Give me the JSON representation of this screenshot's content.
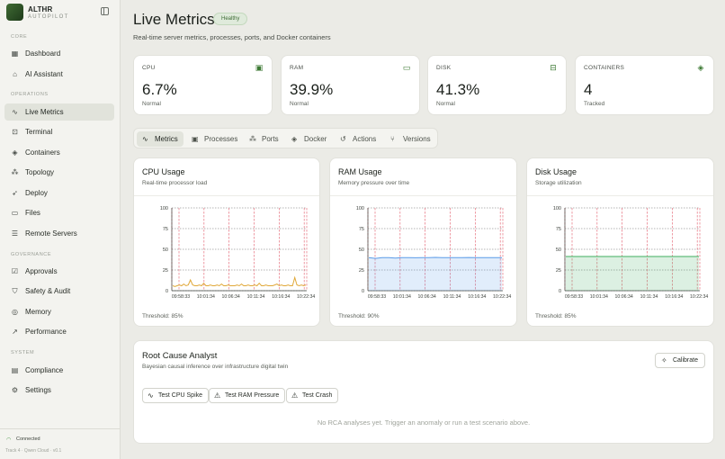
{
  "brand": {
    "name": "ALTHR",
    "tagline": "AUTOPILOT"
  },
  "sidebar": {
    "sections": [
      {
        "label": "CORE",
        "items": [
          {
            "label": "Dashboard",
            "icon": "grid-icon"
          },
          {
            "label": "AI Assistant",
            "icon": "bot-icon"
          }
        ]
      },
      {
        "label": "OPERATIONS",
        "items": [
          {
            "label": "Live Metrics",
            "icon": "activity-icon",
            "active": true
          },
          {
            "label": "Terminal",
            "icon": "terminal-icon"
          },
          {
            "label": "Containers",
            "icon": "box-icon"
          },
          {
            "label": "Topology",
            "icon": "network-icon"
          },
          {
            "label": "Deploy",
            "icon": "rocket-icon"
          },
          {
            "label": "Files",
            "icon": "folder-icon"
          },
          {
            "label": "Remote Servers",
            "icon": "server-icon"
          }
        ]
      },
      {
        "label": "GOVERNANCE",
        "items": [
          {
            "label": "Approvals",
            "icon": "clipboard-icon"
          },
          {
            "label": "Safety & Audit",
            "icon": "shield-icon"
          },
          {
            "label": "Memory",
            "icon": "memory-icon"
          },
          {
            "label": "Performance",
            "icon": "trend-icon"
          }
        ]
      },
      {
        "label": "SYSTEM",
        "items": [
          {
            "label": "Compliance",
            "icon": "compliance-icon"
          },
          {
            "label": "Settings",
            "icon": "gear-icon"
          }
        ]
      }
    ],
    "status": "Connected",
    "footer": "Track 4 · Qwen Cloud · v0.1"
  },
  "header": {
    "title": "Live Metrics",
    "badge": "Healthy",
    "subtitle": "Real-time server metrics, processes, ports, and Docker containers"
  },
  "stats": [
    {
      "label": "CPU",
      "value": "6.7%",
      "sub": "Normal",
      "icon": "cpu-icon"
    },
    {
      "label": "RAM",
      "value": "39.9%",
      "sub": "Normal",
      "icon": "ram-icon"
    },
    {
      "label": "DISK",
      "value": "41.3%",
      "sub": "Normal",
      "icon": "disk-icon"
    },
    {
      "label": "CONTAINERS",
      "value": "4",
      "sub": "Tracked",
      "icon": "container-icon"
    }
  ],
  "tabs": [
    {
      "label": "Metrics",
      "icon": "activity-icon",
      "active": true
    },
    {
      "label": "Processes",
      "icon": "cpu-icon"
    },
    {
      "label": "Ports",
      "icon": "network-icon"
    },
    {
      "label": "Docker",
      "icon": "box-icon"
    },
    {
      "label": "Actions",
      "icon": "history-icon"
    },
    {
      "label": "Versions",
      "icon": "branch-icon"
    }
  ],
  "charts": [
    {
      "title": "CPU Usage",
      "subtitle": "Real-time processor load",
      "threshold": "Threshold: 85%"
    },
    {
      "title": "RAM Usage",
      "subtitle": "Memory pressure over time",
      "threshold": "Threshold: 90%"
    },
    {
      "title": "Disk Usage",
      "subtitle": "Storage utilization",
      "threshold": "Threshold: 85%"
    }
  ],
  "chart_data": [
    {
      "type": "line",
      "y_ticks": [
        0,
        25,
        50,
        75,
        100
      ],
      "x_ticks": [
        "09:58:33",
        "10:01:34",
        "10:06:34",
        "10:11:34",
        "10:16:34",
        "10:22:34"
      ],
      "ylim": [
        0,
        100
      ],
      "grid": true,
      "color": "#e0a838",
      "fill": false,
      "series": [
        {
          "values": [
            6,
            5,
            6,
            7,
            6,
            8,
            6,
            7,
            13,
            7,
            6,
            6,
            7,
            6,
            9,
            6,
            6,
            7,
            6,
            6,
            7,
            6,
            8,
            6,
            6,
            7,
            6,
            6,
            6,
            7,
            6,
            8,
            6,
            6,
            7,
            6,
            6,
            7,
            6,
            9,
            6,
            6,
            7,
            6,
            6,
            6,
            7,
            8,
            6,
            7,
            6,
            6,
            7,
            6,
            6,
            16,
            7,
            6,
            7,
            6,
            7
          ]
        }
      ]
    },
    {
      "type": "area",
      "y_ticks": [
        0,
        25,
        50,
        75,
        100
      ],
      "x_ticks": [
        "09:58:33",
        "10:01:34",
        "10:06:34",
        "10:11:34",
        "10:16:34",
        "10:22:34"
      ],
      "ylim": [
        0,
        100
      ],
      "grid": true,
      "color": "#5b9be8",
      "fill": true,
      "series": [
        {
          "values": [
            40,
            39,
            40,
            40,
            39.5,
            40,
            40,
            39.8,
            40,
            40,
            40.2,
            40,
            39.9,
            40,
            40,
            40.1,
            40,
            40,
            39.9,
            40,
            40
          ]
        }
      ]
    },
    {
      "type": "area",
      "y_ticks": [
        0,
        25,
        50,
        75,
        100
      ],
      "x_ticks": [
        "09:58:33",
        "10:01:34",
        "10:06:34",
        "10:11:34",
        "10:16:34",
        "10:22:34"
      ],
      "ylim": [
        0,
        100
      ],
      "grid": true,
      "color": "#3fae5f",
      "fill": true,
      "series": [
        {
          "values": [
            41.3,
            41.3,
            41.3,
            41.3,
            41.3,
            41.3,
            41.3,
            41.3,
            41.3,
            41.3,
            41.3
          ]
        }
      ]
    }
  ],
  "rca": {
    "title": "Root Cause Analyst",
    "subtitle": "Bayesian causal inference over infrastructure digital twin",
    "calibrate": "Calibrate",
    "tests": [
      {
        "label": "Test CPU Spike",
        "icon": "activity-icon"
      },
      {
        "label": "Test RAM Pressure",
        "icon": "warning-icon"
      },
      {
        "label": "Test Crash",
        "icon": "warning-icon"
      }
    ],
    "empty": "No RCA analyses yet. Trigger an anomaly or run a test scenario above."
  }
}
